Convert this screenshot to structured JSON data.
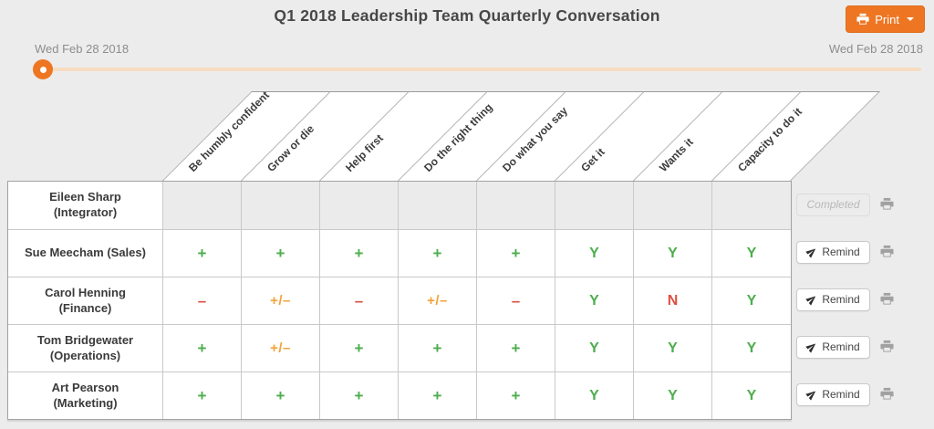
{
  "page": {
    "title": "Q1 2018 Leadership Team Quarterly Conversation"
  },
  "toolbar": {
    "print_label": "Print"
  },
  "slider": {
    "start_label": "Wed Feb 28 2018",
    "end_label": "Wed Feb 28 2018"
  },
  "colors": {
    "accent_orange": "#ee7623",
    "track_orange": "#f8dcc2",
    "positive_green": "#4cae4c",
    "negative_red": "#df4e43",
    "mixed_amber": "#f2a338",
    "background": "#ececec"
  },
  "icons": {
    "print_button": "printer-icon",
    "print_caret": "caret-down-icon",
    "remind": "paper-plane-icon",
    "row_print": "printer-icon",
    "slider": "slider-handle-dot"
  },
  "table": {
    "columns": [
      "Be humbly confident",
      "Grow or die",
      "Help first",
      "Do the right thing",
      "Do what you say",
      "Get it",
      "Wants it",
      "Capacity to do it"
    ],
    "rows": [
      {
        "name": "Eileen Sharp (Integrator)",
        "values": [
          "",
          "",
          "",
          "",
          "",
          "",
          "",
          ""
        ],
        "action": {
          "type": "completed",
          "label": "Completed"
        }
      },
      {
        "name": "Sue Meecham (Sales)",
        "values": [
          "+",
          "+",
          "+",
          "+",
          "+",
          "Y",
          "Y",
          "Y"
        ],
        "action": {
          "type": "remind",
          "label": "Remind"
        }
      },
      {
        "name": "Carol Henning (Finance)",
        "values": [
          "–",
          "+/–",
          "–",
          "+/–",
          "–",
          "Y",
          "N",
          "Y"
        ],
        "action": {
          "type": "remind",
          "label": "Remind"
        }
      },
      {
        "name": "Tom Bridgewater (Operations)",
        "values": [
          "+",
          "+/–",
          "+",
          "+",
          "+",
          "Y",
          "Y",
          "Y"
        ],
        "action": {
          "type": "remind",
          "label": "Remind"
        }
      },
      {
        "name": "Art Pearson (Marketing)",
        "values": [
          "+",
          "+",
          "+",
          "+",
          "+",
          "Y",
          "Y",
          "Y"
        ],
        "action": {
          "type": "remind",
          "label": "Remind"
        }
      }
    ]
  }
}
